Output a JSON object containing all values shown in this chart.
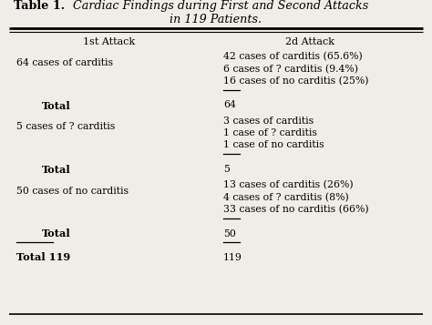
{
  "title_prefix": "Table 1.",
  "title_rest": "  Cardiac Findings during First and Second Attacks",
  "title_line2": "in 119 Patients.",
  "col1_header": "1st Attack",
  "col2_header": "2d Attack",
  "background": "#f0ede8",
  "rows": [
    {
      "col1": "64 cases of carditis",
      "col2": [
        "42 cases of carditis (65.6%)",
        "6 cases of ? carditis (9.4%)",
        "16 cases of no carditis (25%)"
      ],
      "total_val": "64"
    },
    {
      "col1": "5 cases of ? carditis",
      "col2": [
        "3 cases of carditis",
        "1 case of ? carditis",
        "1 case of no carditis"
      ],
      "total_val": "5"
    },
    {
      "col1": "50 cases of no carditis",
      "col2": [
        "13 cases of carditis (26%)",
        "4 cases of ? carditis (8%)",
        "33 cases of no carditis (66%)"
      ],
      "total_val": "50"
    }
  ],
  "grand_total_label": "Total 119",
  "grand_total_val": "119",
  "font_size": 7.8,
  "header_font_size": 8.0,
  "title_font_size": 9.2
}
